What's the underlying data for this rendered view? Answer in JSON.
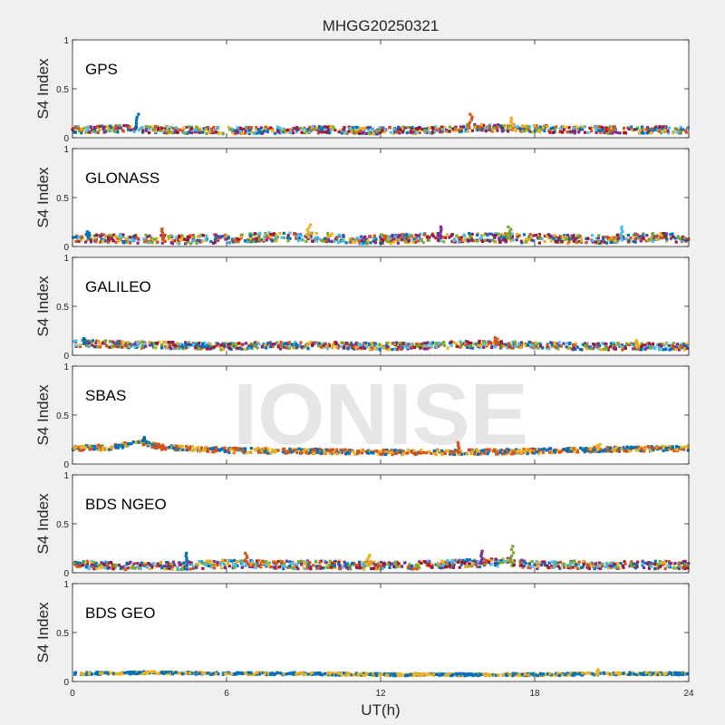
{
  "figure": {
    "title": "MHGG20250321",
    "xlabel": "UT(h)",
    "ylabel": "S4 Index",
    "watermark": "IONISE",
    "background": "#f0f0f0",
    "axes_background": "#ffffff",
    "series_colors": [
      "#0072bd",
      "#d95319",
      "#edb120",
      "#7e2f8e",
      "#77ac30",
      "#4dbeee",
      "#a2142f"
    ]
  },
  "chart_data": [
    {
      "type": "scatter",
      "panel_label": "GPS",
      "xlim": [
        0,
        24
      ],
      "ylim": [
        0,
        1
      ],
      "xticks": [
        0,
        6,
        12,
        18,
        24
      ],
      "yticks": [
        0,
        0.5,
        1
      ],
      "xtick_labels": [
        "0",
        "6",
        "12",
        "18",
        "24"
      ],
      "ytick_labels": [
        "0",
        "0.5",
        "1"
      ],
      "grid": false,
      "profile_x": [
        0,
        2,
        4,
        6,
        8,
        10,
        12,
        14,
        15.5,
        17,
        18,
        20,
        22,
        24
      ],
      "profile_y": [
        0.08,
        0.09,
        0.08,
        0.07,
        0.08,
        0.08,
        0.07,
        0.08,
        0.1,
        0.1,
        0.09,
        0.08,
        0.08,
        0.08
      ],
      "spikes": [
        [
          2.5,
          0.24
        ],
        [
          15.5,
          0.24
        ],
        [
          17.1,
          0.2
        ]
      ],
      "spread": 0.035,
      "colors": [
        "#0072bd",
        "#d95319",
        "#edb120",
        "#7e2f8e",
        "#77ac30",
        "#4dbeee",
        "#a2142f"
      ]
    },
    {
      "type": "scatter",
      "panel_label": "GLONASS",
      "xlim": [
        0,
        24
      ],
      "ylim": [
        0,
        1
      ],
      "xticks": [
        0,
        6,
        12,
        18,
        24
      ],
      "yticks": [
        0,
        0.5,
        1
      ],
      "xtick_labels": [
        "0",
        "6",
        "12",
        "18",
        "24"
      ],
      "ytick_labels": [
        "0",
        "0.5",
        "1"
      ],
      "grid": false,
      "profile_x": [
        0,
        2,
        4,
        6,
        8,
        10,
        11,
        13,
        14,
        16,
        18,
        20,
        22,
        24
      ],
      "profile_y": [
        0.09,
        0.08,
        0.07,
        0.08,
        0.1,
        0.09,
        0.07,
        0.08,
        0.09,
        0.09,
        0.08,
        0.07,
        0.09,
        0.09
      ],
      "spikes": [
        [
          0.6,
          0.15
        ],
        [
          3.5,
          0.18
        ],
        [
          9.2,
          0.22
        ],
        [
          14.3,
          0.2
        ],
        [
          17,
          0.2
        ],
        [
          21.4,
          0.2
        ]
      ],
      "spread": 0.045,
      "colors": [
        "#0072bd",
        "#d95319",
        "#edb120",
        "#7e2f8e",
        "#77ac30",
        "#4dbeee",
        "#a2142f"
      ]
    },
    {
      "type": "scatter",
      "panel_label": "GALILEO",
      "xlim": [
        0,
        24
      ],
      "ylim": [
        0,
        1
      ],
      "xticks": [
        0,
        6,
        12,
        18,
        24
      ],
      "yticks": [
        0,
        0.5,
        1
      ],
      "xtick_labels": [
        "0",
        "6",
        "12",
        "18",
        "24"
      ],
      "ytick_labels": [
        "0",
        "0.5",
        "1"
      ],
      "grid": false,
      "profile_x": [
        0,
        2,
        4,
        6,
        8,
        10,
        12,
        14,
        16,
        18,
        20,
        22,
        24
      ],
      "profile_y": [
        0.12,
        0.11,
        0.1,
        0.09,
        0.1,
        0.1,
        0.09,
        0.1,
        0.11,
        0.1,
        0.09,
        0.09,
        0.09
      ],
      "spikes": [
        [
          0.5,
          0.17
        ],
        [
          16.5,
          0.18
        ],
        [
          22,
          0.15
        ]
      ],
      "spread": 0.035,
      "colors": [
        "#0072bd",
        "#d95319",
        "#edb120",
        "#7e2f8e",
        "#77ac30",
        "#4dbeee",
        "#a2142f"
      ]
    },
    {
      "type": "scatter",
      "panel_label": "SBAS",
      "xlim": [
        0,
        24
      ],
      "ylim": [
        0,
        1
      ],
      "xticks": [
        0,
        6,
        12,
        18,
        24
      ],
      "yticks": [
        0,
        0.5,
        1
      ],
      "xtick_labels": [
        "0",
        "6",
        "12",
        "18",
        "24"
      ],
      "ytick_labels": [
        "0",
        "0.5",
        "1"
      ],
      "grid": false,
      "profile_x": [
        0,
        1.5,
        2.7,
        3.5,
        6,
        9,
        12,
        15,
        18,
        21,
        24
      ],
      "profile_y": [
        0.16,
        0.17,
        0.22,
        0.17,
        0.14,
        0.13,
        0.12,
        0.12,
        0.13,
        0.15,
        0.16
      ],
      "spikes": [
        [
          2.8,
          0.27
        ],
        [
          15,
          0.22
        ],
        [
          20.5,
          0.2
        ]
      ],
      "spread": 0.025,
      "colors": [
        "#0072bd",
        "#d95319",
        "#edb120"
      ]
    },
    {
      "type": "scatter",
      "panel_label": "BDS NGEO",
      "xlim": [
        0,
        24
      ],
      "ylim": [
        0,
        1
      ],
      "xticks": [
        0,
        6,
        12,
        18,
        24
      ],
      "yticks": [
        0,
        0.5,
        1
      ],
      "xtick_labels": [
        "0",
        "6",
        "12",
        "18",
        "24"
      ],
      "ytick_labels": [
        "0",
        "0.5",
        "1"
      ],
      "grid": false,
      "profile_x": [
        0,
        2,
        4,
        6,
        8,
        10,
        12,
        14,
        16,
        17,
        18,
        20,
        22,
        24
      ],
      "profile_y": [
        0.08,
        0.07,
        0.07,
        0.09,
        0.08,
        0.08,
        0.07,
        0.08,
        0.1,
        0.11,
        0.08,
        0.08,
        0.08,
        0.08
      ],
      "spikes": [
        [
          4.4,
          0.2
        ],
        [
          6.8,
          0.2
        ],
        [
          11.5,
          0.18
        ],
        [
          15.9,
          0.22
        ],
        [
          17.1,
          0.27
        ]
      ],
      "spread": 0.04,
      "colors": [
        "#0072bd",
        "#d95319",
        "#edb120",
        "#7e2f8e",
        "#77ac30",
        "#4dbeee",
        "#a2142f"
      ]
    },
    {
      "type": "scatter",
      "panel_label": "BDS GEO",
      "xlim": [
        0,
        24
      ],
      "ylim": [
        0,
        1
      ],
      "xticks": [
        0,
        6,
        12,
        18,
        24
      ],
      "yticks": [
        0,
        0.5,
        1
      ],
      "xtick_labels": [
        "0",
        "6",
        "12",
        "18",
        "24"
      ],
      "ytick_labels": [
        "0",
        "0.5",
        "1"
      ],
      "grid": false,
      "profile_x": [
        0,
        3,
        6,
        9,
        12,
        15,
        18,
        21,
        24
      ],
      "profile_y": [
        0.08,
        0.09,
        0.08,
        0.08,
        0.07,
        0.07,
        0.07,
        0.08,
        0.08
      ],
      "spikes": [
        [
          20.5,
          0.12
        ]
      ],
      "spread": 0.012,
      "colors": [
        "#edb120",
        "#0072bd"
      ]
    }
  ]
}
